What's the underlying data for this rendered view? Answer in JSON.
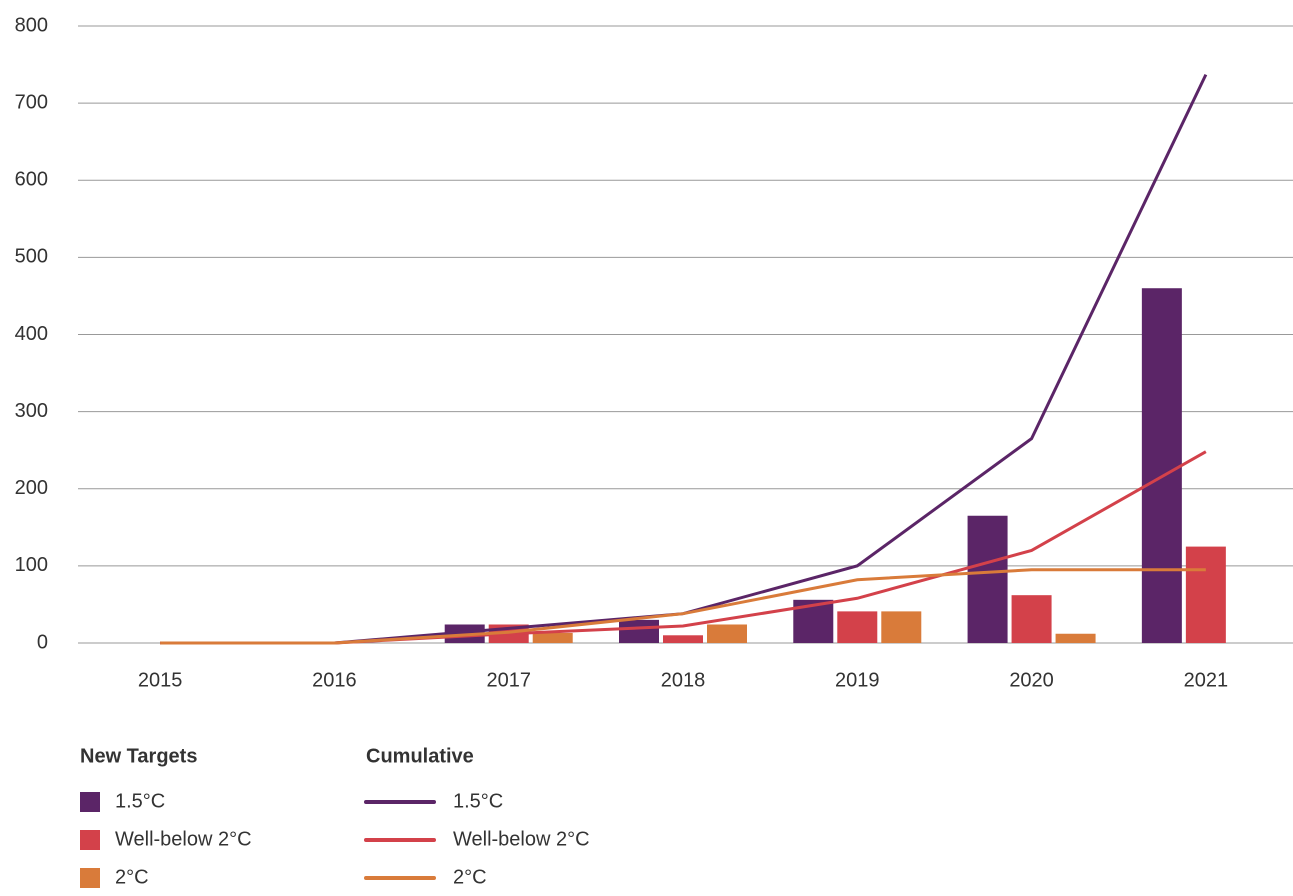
{
  "chart_data": {
    "type": "combo",
    "categories": [
      "2015",
      "2016",
      "2017",
      "2018",
      "2019",
      "2020",
      "2021"
    ],
    "ylim": [
      0,
      800
    ],
    "yticks": [
      0,
      100,
      200,
      300,
      400,
      500,
      600,
      700,
      800
    ],
    "grid": true,
    "legend_groups": [
      "New Targets",
      "Cumulative"
    ],
    "series": [
      {
        "name": "1.5°C",
        "type": "bar",
        "group": 0,
        "color": "#5b2567",
        "values": [
          0,
          0,
          24,
          30,
          56,
          165,
          460
        ]
      },
      {
        "name": "Well-below 2°C",
        "type": "bar",
        "group": 0,
        "color": "#d3414a",
        "values": [
          0,
          0,
          24,
          10,
          41,
          62,
          125
        ]
      },
      {
        "name": "2°C",
        "type": "bar",
        "group": 0,
        "color": "#d97b3a",
        "values": [
          0,
          0,
          13,
          24,
          41,
          12,
          0
        ]
      },
      {
        "name": "1.5°C",
        "type": "line",
        "group": 1,
        "color": "#5b2567",
        "values": [
          0,
          0,
          19,
          38,
          100,
          265,
          737
        ]
      },
      {
        "name": "Well-below 2°C",
        "type": "line",
        "group": 1,
        "color": "#d3414a",
        "values": [
          0,
          0,
          12,
          22,
          58,
          120,
          248
        ]
      },
      {
        "name": "2°C",
        "type": "line",
        "group": 1,
        "color": "#d97b3a",
        "values": [
          0,
          0,
          14,
          38,
          82,
          95,
          95
        ]
      }
    ]
  }
}
